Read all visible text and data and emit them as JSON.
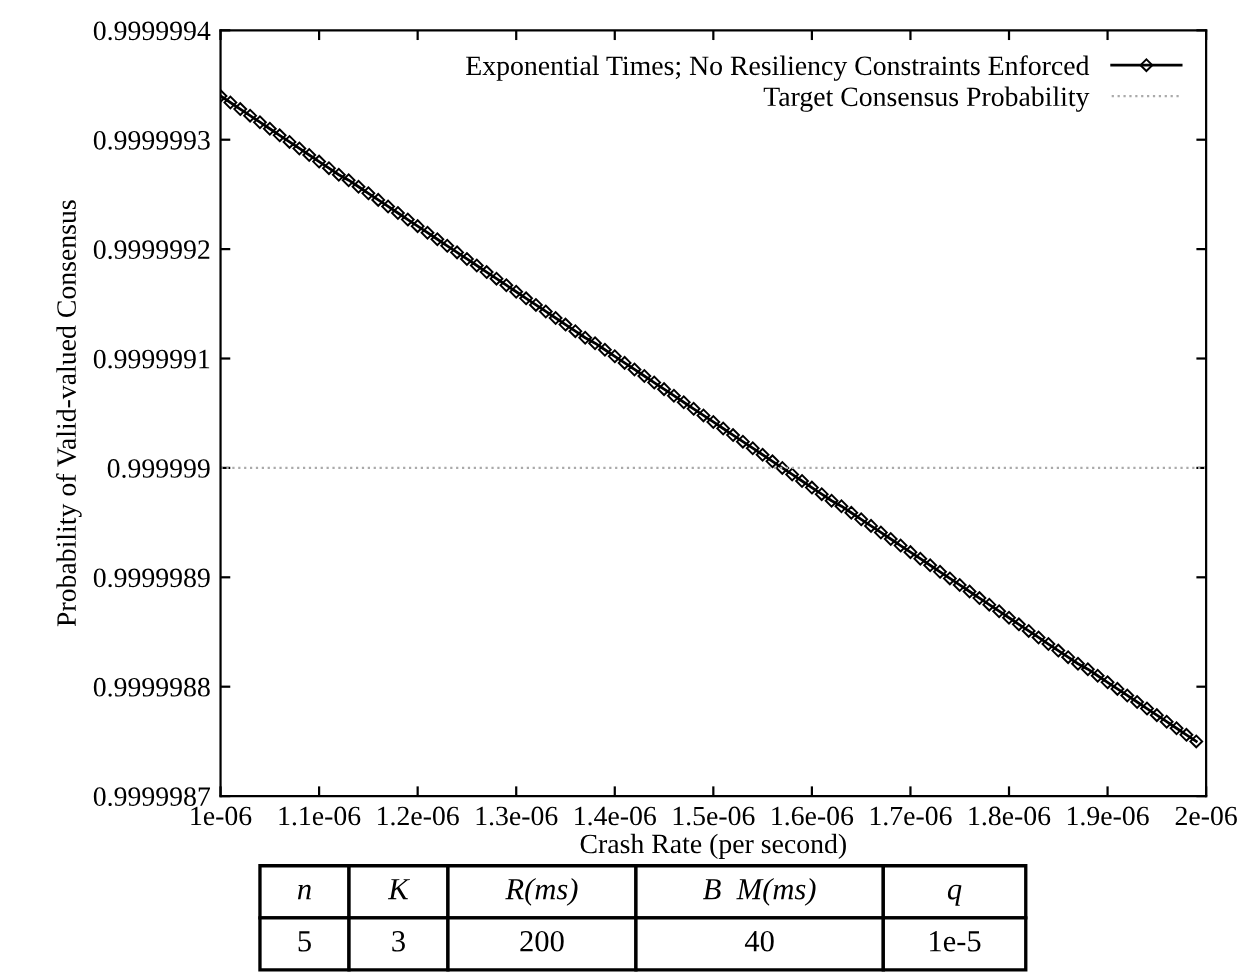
{
  "chart_data": {
    "type": "line",
    "xlabel": "Crash Rate (per second)",
    "ylabel": "Probability of Valid-valued Consensus",
    "x": [
      1e-06,
      1.01e-06,
      1.02e-06,
      1.03e-06,
      1.04e-06,
      1.05e-06,
      1.06e-06,
      1.07e-06,
      1.08e-06,
      1.09e-06,
      1.1e-06,
      1.11e-06,
      1.12e-06,
      1.13e-06,
      1.14e-06,
      1.15e-06,
      1.16e-06,
      1.17e-06,
      1.18e-06,
      1.19e-06,
      1.2e-06,
      1.21e-06,
      1.22e-06,
      1.23e-06,
      1.24e-06,
      1.25e-06,
      1.26e-06,
      1.27e-06,
      1.28e-06,
      1.29e-06,
      1.3e-06,
      1.31e-06,
      1.32e-06,
      1.33e-06,
      1.34e-06,
      1.35e-06,
      1.36e-06,
      1.37e-06,
      1.38e-06,
      1.39e-06,
      1.4e-06,
      1.41e-06,
      1.42e-06,
      1.43e-06,
      1.44e-06,
      1.45e-06,
      1.46e-06,
      1.47e-06,
      1.48e-06,
      1.49e-06,
      1.5e-06,
      1.51e-06,
      1.52e-06,
      1.53e-06,
      1.54e-06,
      1.55e-06,
      1.56e-06,
      1.57e-06,
      1.58e-06,
      1.59e-06,
      1.6e-06,
      1.61e-06,
      1.62e-06,
      1.63e-06,
      1.64e-06,
      1.65e-06,
      1.66e-06,
      1.67e-06,
      1.68e-06,
      1.69e-06,
      1.7e-06,
      1.71e-06,
      1.72e-06,
      1.73e-06,
      1.74e-06,
      1.75e-06,
      1.76e-06,
      1.77e-06,
      1.78e-06,
      1.79e-06,
      1.8e-06,
      1.81e-06,
      1.82e-06,
      1.83e-06,
      1.84e-06,
      1.85e-06,
      1.86e-06,
      1.87e-06,
      1.88e-06,
      1.89e-06,
      1.9e-06,
      1.91e-06,
      1.92e-06,
      1.93e-06,
      1.94e-06,
      1.95e-06,
      1.96e-06,
      1.97e-06,
      1.98e-06,
      1.99e-06
    ],
    "series": [
      {
        "name": "Exponential Times; No Resiliency Constraints Enforced",
        "color": "#000000",
        "marker": "diamond",
        "line_style": "solid",
        "values": [
          0.99999934,
          0.999999334,
          0.999999328,
          0.999999322,
          0.999999316,
          0.99999931,
          0.999999304,
          0.999999298,
          0.999999292,
          0.999999286,
          0.99999928,
          0.999999274,
          0.999999268,
          0.999999263,
          0.999999257,
          0.999999251,
          0.999999245,
          0.999999239,
          0.999999233,
          0.999999227,
          0.999999221,
          0.999999215,
          0.999999209,
          0.999999203,
          0.999999197,
          0.999999191,
          0.999999185,
          0.999999179,
          0.999999173,
          0.999999167,
          0.999999161,
          0.999999155,
          0.999999149,
          0.999999143,
          0.999999137,
          0.999999131,
          0.999999125,
          0.999999119,
          0.999999114,
          0.999999108,
          0.999999102,
          0.999999096,
          0.99999909,
          0.999999084,
          0.999999078,
          0.999999072,
          0.999999066,
          0.99999906,
          0.999999054,
          0.999999048,
          0.999999042,
          0.999999036,
          0.99999903,
          0.999999024,
          0.999999018,
          0.999999012,
          0.999999006,
          0.999999,
          0.999998994,
          0.999998988,
          0.999998982,
          0.999998976,
          0.99999897,
          0.999998965,
          0.999998959,
          0.999998953,
          0.999998947,
          0.999998941,
          0.999998935,
          0.999998929,
          0.999998923,
          0.999998917,
          0.999998911,
          0.999998905,
          0.999998899,
          0.999998893,
          0.999998887,
          0.999998881,
          0.999998875,
          0.999998869,
          0.999998863,
          0.999998857,
          0.999998851,
          0.999998845,
          0.999998839,
          0.999998833,
          0.999998827,
          0.999998821,
          0.999998816,
          0.99999881,
          0.999998804,
          0.999998798,
          0.999998792,
          0.999998786,
          0.99999878,
          0.999998774,
          0.999998768,
          0.999998762,
          0.999998756,
          0.99999875
        ]
      }
    ],
    "ref_lines": [
      {
        "axis": "y",
        "value": 0.999999,
        "label": "Target Consensus Probability",
        "color": "#aaaaaa",
        "line_style": "dotted"
      }
    ],
    "xlim": [
      1e-06,
      2e-06
    ],
    "xticks": [
      1e-06,
      1.1e-06,
      1.2e-06,
      1.3e-06,
      1.4e-06,
      1.5e-06,
      1.6e-06,
      1.7e-06,
      1.8e-06,
      1.9e-06,
      2e-06
    ],
    "ylim": [
      0.9999987,
      0.9999994
    ],
    "yticks": [
      0.9999987,
      0.9999988,
      0.9999989,
      0.999999,
      0.9999991,
      0.9999992,
      0.9999993,
      0.9999994
    ],
    "legend": "top right",
    "grid": false,
    "annotations": [
      "n",
      "K",
      "R(ms)",
      "B  M(ms)",
      "q",
      "5",
      "3",
      "200",
      "40",
      "1e-5"
    ]
  }
}
